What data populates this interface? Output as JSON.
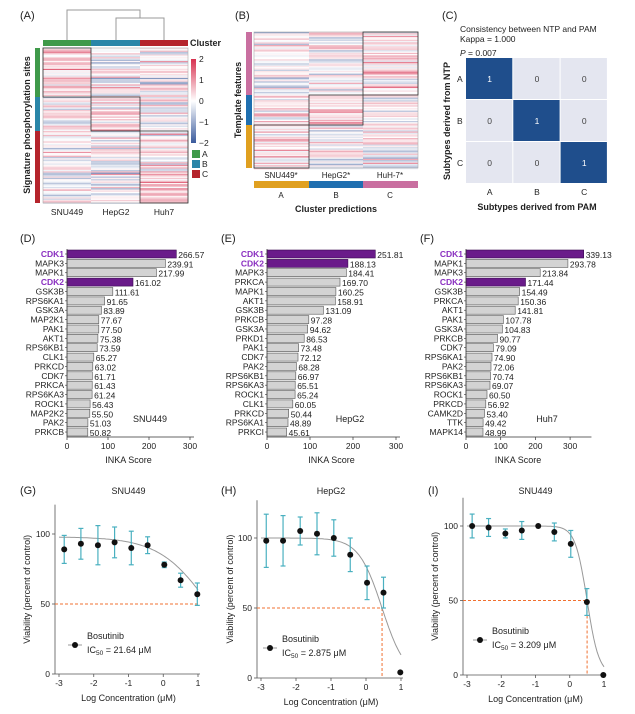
{
  "panel_labels": {
    "A": "(A)",
    "B": "(B)",
    "C": "(C)",
    "D": "(D)",
    "E": "(E)",
    "F": "(F)",
    "G": "(G)",
    "H": "(H)",
    "I": "(I)"
  },
  "colors": {
    "heat_high": "#d7304f",
    "heat_low": "#3a5a9c",
    "cluster_A": "#3f9a4a",
    "cluster_B": "#2a86a8",
    "cluster_C": "#b5242c",
    "pred_A": "#e0a020",
    "pred_B": "#1f6fb0",
    "pred_C": "#c96fa0",
    "matrix_on": "#1f4e8c",
    "matrix_off": "#e4e6f0",
    "highlight_bar": "#6a1b8a",
    "highlight_text": "#8a2fc0",
    "bar": "#d3d3d3",
    "error_bar": "#4ab0c0",
    "ic50_line": "#f07030",
    "fit_curve": "#999999"
  },
  "chart_data": [
    {
      "panel": "A",
      "type": "heatmap",
      "ylabel": "Signature phosphorylation sites",
      "columns": [
        "SNU449",
        "HepG2",
        "Huh7"
      ],
      "column_clusters": [
        "A",
        "B",
        "C"
      ],
      "row_groups": [
        "A",
        "B",
        "C"
      ],
      "cluster_title": "Cluster",
      "colorbar_ticks": [
        "2",
        "1",
        "0",
        "−1",
        "−2"
      ],
      "legend": [
        "A",
        "B",
        "C"
      ],
      "dendrogram": "SNU449 | (HepG2, Huh7)"
    },
    {
      "panel": "B",
      "type": "heatmap",
      "ylabel": "Template features",
      "columns": [
        "SNU449*",
        "HepG2*",
        "HuH-7*"
      ],
      "column_predictions": [
        "A",
        "B",
        "C"
      ],
      "xlabel": "Cluster predictions",
      "row_groups": [
        "C",
        "B",
        "A"
      ]
    },
    {
      "panel": "C",
      "type": "table",
      "title": "Consistency between NTP and PAM",
      "kappa": "Kappa = 1.000",
      "p_label": "P",
      "p_value": " = 0.007",
      "row_labels": [
        "A",
        "B",
        "C"
      ],
      "col_labels": [
        "A",
        "B",
        "C"
      ],
      "matrix": [
        [
          1,
          0,
          0
        ],
        [
          0,
          1,
          0
        ],
        [
          0,
          0,
          1
        ]
      ],
      "xlabel": "Subtypes derived from PAM",
      "ylabel": "Subtypes derived from NTP"
    },
    {
      "panel": "D",
      "type": "bar",
      "orientation": "horizontal",
      "cell_line": "SNU449",
      "xlabel": "INKA Score",
      "xlim": [
        0,
        300
      ],
      "xticks": [
        "0",
        "100",
        "200",
        "300"
      ],
      "highlight": [
        "CDK1",
        "CDK2"
      ],
      "categories": [
        "CDK1",
        "MAPK3",
        "MAPK1",
        "CDK2",
        "GSK3B",
        "RPS6KA1",
        "GSK3A",
        "MAP2K1",
        "PAK1",
        "AKT1",
        "RPS6KB1",
        "CLK1",
        "PRKCD",
        "CDK7",
        "PRKCA",
        "RPS6KA3",
        "ROCK1",
        "MAP2K2",
        "PAK2",
        "PRKCB"
      ],
      "values": [
        "266.57",
        "239.91",
        "217.99",
        "161.02",
        "111.61",
        "91.65",
        "83.89",
        "77.67",
        "77.50",
        "75.38",
        "73.59",
        "65.27",
        "63.02",
        "61.71",
        "61.43",
        "61.24",
        "56.43",
        "55.50",
        "51.03",
        "50.82"
      ]
    },
    {
      "panel": "E",
      "type": "bar",
      "orientation": "horizontal",
      "cell_line": "HepG2",
      "xlabel": "INKA Score",
      "xlim": [
        0,
        300
      ],
      "xticks": [
        "0",
        "100",
        "200",
        "300"
      ],
      "highlight": [
        "CDK1",
        "CDK2"
      ],
      "categories": [
        "CDK1",
        "CDK2",
        "MAPK3",
        "PRKCA",
        "MAPK1",
        "AKT1",
        "GSK3B",
        "PRKCB",
        "GSK3A",
        "PRKD1",
        "PAK1",
        "CDK7",
        "PAK2",
        "RPS6KB1",
        "RPS6KA3",
        "ROCK1",
        "CLK1",
        "PRKCD",
        "RPS6KA1",
        "PRKCI"
      ],
      "values": [
        "251.81",
        "188.13",
        "184.41",
        "169.70",
        "160.25",
        "158.91",
        "131.09",
        "97.28",
        "94.62",
        "86.53",
        "73.48",
        "72.12",
        "68.28",
        "66.97",
        "65.51",
        "65.24",
        "60.05",
        "50.44",
        "48.89",
        "45.61"
      ]
    },
    {
      "panel": "F",
      "type": "bar",
      "orientation": "horizontal",
      "cell_line": "Huh7",
      "xlabel": "INKA Score",
      "xlim": [
        0,
        350
      ],
      "xticks": [
        "0",
        "100",
        "200",
        "300"
      ],
      "highlight": [
        "CDK1",
        "CDK2"
      ],
      "categories": [
        "CDK1",
        "MAPK1",
        "MAPK3",
        "CDK2",
        "GSK3B",
        "PRKCA",
        "AKT1",
        "PAK1",
        "GSK3A",
        "PRKCB",
        "CDK7",
        "RPS6KA1",
        "PAK2",
        "RPS6KB1",
        "RPS6KA3",
        "ROCK1",
        "PRKCD",
        "CAMK2D",
        "TTK",
        "MAPK14"
      ],
      "values": [
        "339.13",
        "293.78",
        "213.84",
        "171.44",
        "154.49",
        "150.36",
        "141.81",
        "107.78",
        "104.83",
        "90.77",
        "79.09",
        "74.90",
        "72.06",
        "70.74",
        "69.07",
        "60.50",
        "56.92",
        "53.40",
        "49.42",
        "48.99"
      ]
    },
    {
      "panel": "G",
      "type": "line",
      "title": "SNU449",
      "xlabel": "Log Concentration (μM)",
      "ylabel": "Viability (percent of control)",
      "xlim": [
        -3,
        1
      ],
      "ylim": [
        0,
        121
      ],
      "xticks": [
        "-3",
        "-2",
        "-1",
        "0",
        "1"
      ],
      "yticks": [
        "0",
        "50",
        "100"
      ],
      "series_label": "Bosutinib",
      "ic50_prefix": "IC",
      "ic50_sub": "50",
      "ic50_text": " = 21.64 μM",
      "ic50_um": 21.64,
      "x": [
        -2.85,
        -2.37,
        -1.88,
        -1.4,
        -0.92,
        -0.45,
        0.03,
        0.5,
        0.98
      ],
      "y": [
        89,
        93,
        92,
        94,
        90,
        92,
        78,
        67,
        57
      ],
      "err": [
        10,
        11,
        14,
        11,
        12,
        6,
        2,
        5,
        8
      ]
    },
    {
      "panel": "H",
      "type": "line",
      "title": "HepG2",
      "xlabel": "Log Concentration (μM)",
      "ylabel": "Viability (percent of control)",
      "xlim": [
        -3,
        1
      ],
      "ylim": [
        0,
        127
      ],
      "xticks": [
        "-3",
        "-2",
        "-1",
        "0",
        "1"
      ],
      "yticks": [
        "0",
        "50",
        "100"
      ],
      "series_label": "Bosutinib",
      "ic50_prefix": "IC",
      "ic50_sub": "50",
      "ic50_text": " = 2.875 μM",
      "ic50_um": 2.875,
      "x": [
        -2.85,
        -2.37,
        -1.88,
        -1.4,
        -0.92,
        -0.45,
        0.03,
        0.5,
        0.98
      ],
      "y": [
        98,
        98,
        105,
        103,
        100,
        88,
        68,
        61,
        4
      ],
      "err": [
        19,
        18,
        10,
        15,
        13,
        12,
        12,
        11,
        0
      ]
    },
    {
      "panel": "I",
      "type": "line",
      "title": "SNU449",
      "xlabel": "Log Concentration (μM)",
      "ylabel": "Viability (percent of control)",
      "xlim": [
        -3,
        1
      ],
      "ylim": [
        0,
        119
      ],
      "xticks": [
        "-3",
        "-2",
        "-1",
        "0",
        "1"
      ],
      "yticks": [
        "0",
        "50",
        "100"
      ],
      "series_label": "Bosutinib",
      "ic50_prefix": "IC",
      "ic50_sub": "50",
      "ic50_text": " = 3.209 μM",
      "ic50_um": 3.209,
      "x": [
        -2.85,
        -2.37,
        -1.88,
        -1.4,
        -0.92,
        -0.45,
        0.03,
        0.5,
        0.98
      ],
      "y": [
        100,
        99,
        95,
        97,
        100,
        96,
        88,
        49,
        0
      ],
      "err": [
        8,
        6,
        3,
        6,
        0,
        6,
        9,
        9,
        0
      ]
    }
  ]
}
